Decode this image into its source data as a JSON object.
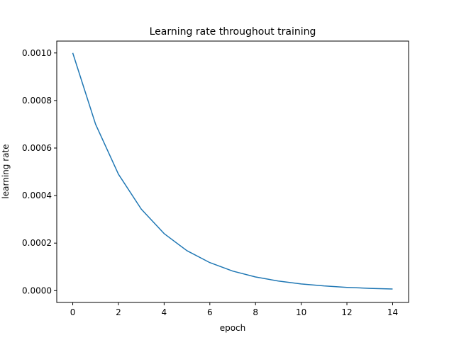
{
  "chart_data": {
    "type": "line",
    "title": "Learning rate throughout training",
    "xlabel": "epoch",
    "ylabel": "learning rate",
    "xlim": [
      -0.7,
      14.7
    ],
    "ylim": [
      -4.97e-05,
      0.00105
    ],
    "xticks": [
      0,
      2,
      4,
      6,
      8,
      10,
      12,
      14
    ],
    "xtick_labels": [
      "0",
      "2",
      "4",
      "6",
      "8",
      "10",
      "12",
      "14"
    ],
    "yticks": [
      0.0,
      0.0002,
      0.0004,
      0.0006,
      0.0008,
      0.001
    ],
    "ytick_labels": [
      "0.0000",
      "0.0002",
      "0.0004",
      "0.0006",
      "0.0008",
      "0.0010"
    ],
    "grid": false,
    "series": [
      {
        "color": "#1f77b4",
        "x": [
          0,
          1,
          2,
          3,
          4,
          5,
          6,
          7,
          8,
          9,
          10,
          11,
          12,
          13,
          14
        ],
        "values": [
          0.001,
          0.0007,
          0.00049,
          0.000343,
          0.00024,
          0.000168,
          0.000118,
          8.24e-05,
          5.76e-05,
          4.04e-05,
          2.82e-05,
          1.98e-05,
          1.38e-05,
          9.69e-06,
          6.78e-06
        ]
      }
    ]
  }
}
